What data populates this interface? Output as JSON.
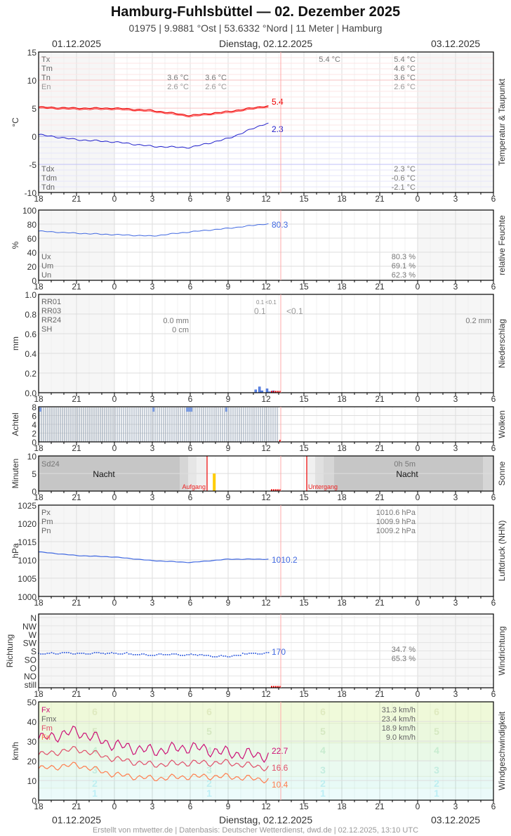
{
  "header": {
    "title": "Hamburg-Fuhlsbüttel  —  02. Dezember 2025",
    "subtitle": "01975  |  9.9881 °Ost  |  53.6332 °Nord  |  11 Meter  |  Hamburg",
    "date_left": "01.12.2025",
    "date_center": "Dienstag, 02.12.2025",
    "date_right": "03.12.2025"
  },
  "footer": "Erstellt von mtwetter.de | Datenbasis: Deutscher Wetterdienst, dwd.de | 02.12.2025, 13:10 UTC",
  "x_ticks": [
    "18",
    "21",
    "0",
    "3",
    "6",
    "9",
    "12",
    "15",
    "18",
    "21",
    "0",
    "3",
    "6"
  ],
  "colors": {
    "temp": "#ff0000",
    "dew": "#0000dd",
    "humidity": "#4169e1",
    "pressure": "#4169e1",
    "now_line": "#ffaaaa",
    "gust": "#cc1177",
    "wind_mean": "#e0506a",
    "wind_min": "#ff7f50"
  },
  "chart_data": [
    {
      "type": "line",
      "title": "Temperatur & Taupunkt",
      "ylabel": "°C",
      "ylim": [
        -10,
        15
      ],
      "yticks": [
        "15",
        "10",
        "5",
        "0",
        "-5",
        "-10"
      ],
      "x": [
        "18",
        "21",
        "0",
        "3",
        "6",
        "9",
        "12"
      ],
      "series": [
        {
          "name": "T",
          "values": [
            5.2,
            5.0,
            5.0,
            4.6,
            3.7,
            4.4,
            5.4
          ],
          "last_label": "5.4"
        },
        {
          "name": "Td",
          "values": [
            0.3,
            -0.6,
            -1.0,
            -1.8,
            -2.0,
            -0.4,
            2.3
          ],
          "last_label": "2.3"
        }
      ],
      "legend_top": [
        "Tx",
        "Tm",
        "Tn",
        "En"
      ],
      "legend_bottom": [
        "Tdx",
        "Tdm",
        "Tdn"
      ],
      "day1_values": {
        "Tn": "3.6 °C",
        "En": "2.6 °C"
      },
      "day1b_values": {
        "Tn": "3.6 °C",
        "En": "2.6 °C"
      },
      "day2_tx": "5.4 °C",
      "summary_top": [
        "5.4 °C",
        "4.6 °C",
        "3.6 °C",
        "2.6 °C"
      ],
      "summary_bottom": [
        "2.3 °C",
        "-0.6 °C",
        "-2.1 °C"
      ]
    },
    {
      "type": "line",
      "title": "relative Feuchte",
      "ylabel": "%",
      "ylim": [
        0,
        100
      ],
      "yticks": [
        "100",
        "80",
        "60",
        "40",
        "20",
        "0"
      ],
      "x": [
        "18",
        "21",
        "0",
        "3",
        "6",
        "9",
        "12"
      ],
      "series": [
        {
          "name": "U",
          "values": [
            70,
            67,
            65,
            63,
            69,
            74,
            80.3
          ],
          "last_label": "80.3"
        }
      ],
      "legend": [
        "Ux",
        "Um",
        "Un"
      ],
      "summary": [
        "80.3 %",
        "69.1 %",
        "62.3 %"
      ]
    },
    {
      "type": "bar",
      "title": "Niederschlag",
      "ylabel": "mm",
      "ylim": [
        0,
        1.0
      ],
      "yticks": [
        "1.0",
        "0.8",
        "0.6",
        "0.4",
        "0.2",
        "0.0"
      ],
      "legend": [
        "RR01",
        "RR03",
        "RR24",
        "SH"
      ],
      "rr01_labels": [
        "0.1",
        "<0.1"
      ],
      "rr03_labels": [
        "0.1",
        "<0.1"
      ],
      "rr24_day1": "0.0 mm",
      "sh_day1": "0 cm",
      "rr24_day2": "0.2 mm",
      "bars": [
        {
          "hour": 11.1,
          "value": 0.03
        },
        {
          "hour": 11.4,
          "value": 0.06
        },
        {
          "hour": 11.6,
          "value": 0.02
        },
        {
          "hour": 12.0,
          "value": 0.04
        },
        {
          "hour": 12.2,
          "value": 0.01
        },
        {
          "hour": 12.5,
          "value": 0.02
        }
      ]
    },
    {
      "type": "bar",
      "title": "Wolken",
      "ylabel": "Achtel",
      "ylim": [
        0,
        8
      ],
      "yticks": [
        "8",
        "6",
        "4",
        "2",
        "0"
      ],
      "values_note": "overcast 8/8 from 18h to ~13h"
    },
    {
      "type": "bar",
      "title": "Sonne",
      "ylabel": "Minuten",
      "ylim": [
        0,
        10
      ],
      "yticks": [
        "10",
        "5",
        "0"
      ],
      "legend": [
        "Sd24"
      ],
      "night_label": "Nacht",
      "sunrise_label": "Aufgang",
      "sunset_label": "Untergang",
      "sd24_day2": "0h 5m",
      "bars": [
        {
          "hour": 7.9,
          "value": 5
        }
      ]
    },
    {
      "type": "line",
      "title": "Luftdruck (NHN)",
      "ylabel": "hPa",
      "ylim": [
        1000,
        1025
      ],
      "yticks": [
        "1025",
        "1020",
        "1015",
        "1010",
        "1005",
        "1000"
      ],
      "x": [
        "18",
        "21",
        "0",
        "3",
        "6",
        "9",
        "12"
      ],
      "series": [
        {
          "name": "P",
          "values": [
            1012.2,
            1011.2,
            1010.8,
            1009.8,
            1009.3,
            1010.2,
            1010.2
          ],
          "last_label": "1010.2"
        }
      ],
      "legend": [
        "Px",
        "Pm",
        "Pn"
      ],
      "summary": [
        "1010.6 hPa",
        "1009.9 hPa",
        "1009.2 hPa"
      ]
    },
    {
      "type": "scatter",
      "title": "Windrichtung",
      "ylabel": "Richtung",
      "yticks": [
        "N",
        "NW",
        "W",
        "SW",
        "S",
        "SO",
        "O",
        "NO",
        "still"
      ],
      "series": [
        {
          "name": "Dir",
          "values_note": "approx 170–190° (S/SSO) throughout",
          "last_label": "170"
        }
      ],
      "summary": [
        "34.7 %",
        "65.3 %"
      ]
    },
    {
      "type": "line",
      "title": "Windgeschwindigkeit",
      "ylabel": "km/h",
      "ylim": [
        0,
        50
      ],
      "yticks": [
        "50",
        "40",
        "30",
        "20",
        "10",
        "0"
      ],
      "x": [
        "18",
        "21",
        "0",
        "3",
        "6",
        "9",
        "12"
      ],
      "series": [
        {
          "name": "Fx",
          "values": [
            31,
            35,
            28,
            25,
            27,
            24,
            22.7
          ],
          "last_label": "22.7"
        },
        {
          "name": "Fm",
          "values": [
            23,
            26,
            21,
            18,
            19,
            19,
            16.6
          ],
          "last_label": "16.6"
        },
        {
          "name": "Fn",
          "values": [
            16,
            18,
            13,
            11,
            12,
            12,
            10.4
          ],
          "last_label": "10.4"
        }
      ],
      "legend": [
        "Fx",
        "Fmx",
        "Fm",
        "Fn"
      ],
      "beaufort_labels": [
        "6",
        "5",
        "4",
        "3",
        "2",
        "1"
      ],
      "summary": [
        "31.3 km/h",
        "23.4 km/h",
        "18.9 km/h",
        "9.0 km/h"
      ]
    }
  ]
}
